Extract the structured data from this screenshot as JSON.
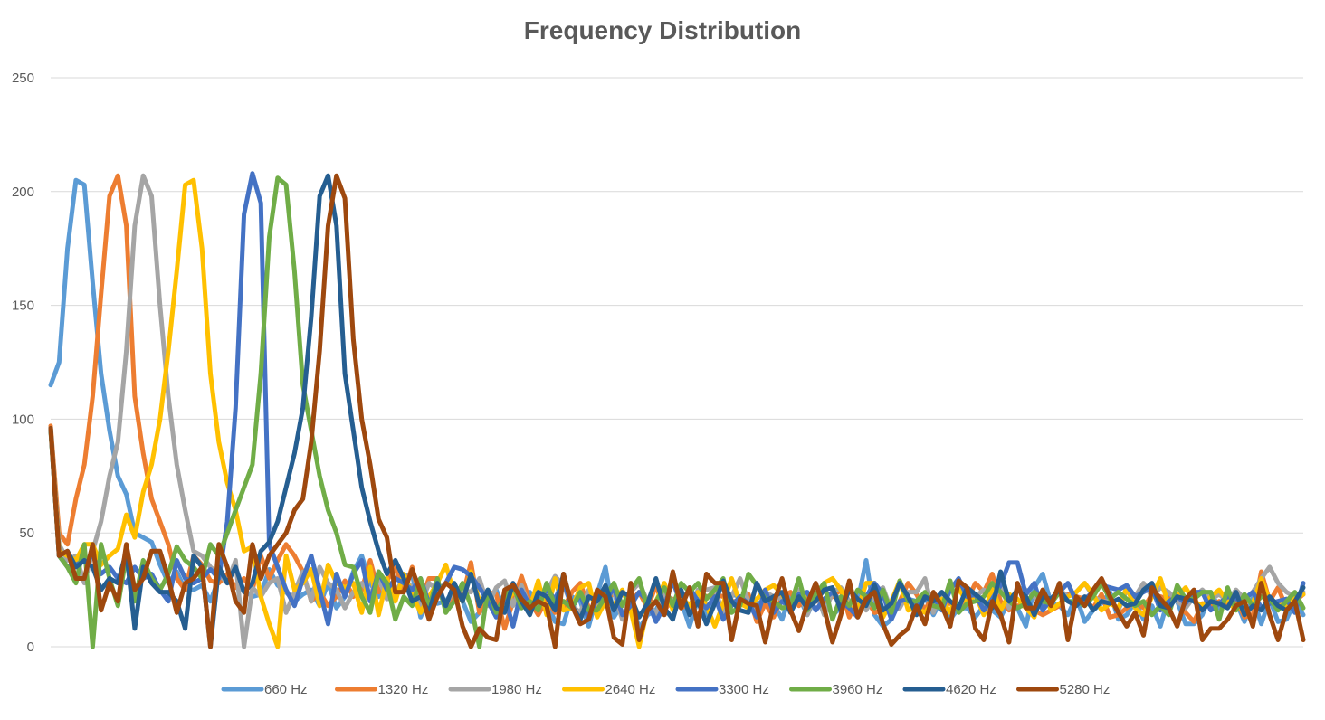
{
  "chart_data": {
    "type": "line",
    "title": "Frequency Distribution",
    "xlabel": "",
    "ylabel": "",
    "ylim": [
      0,
      250
    ],
    "yticks": [
      0,
      50,
      100,
      150,
      200,
      250
    ],
    "x_tick_labels_shown": false,
    "grid": "horizontal",
    "legend_position": "bottom",
    "n_points": 150,
    "series": [
      {
        "name": "660 Hz",
        "color": "#5B9BD5",
        "values": [
          115,
          125,
          175,
          205,
          203,
          160,
          120,
          95,
          75,
          67,
          50,
          48,
          46,
          36,
          28,
          33,
          25,
          25,
          27,
          20,
          30,
          29,
          26,
          25,
          22,
          23,
          34,
          27,
          24,
          20,
          23,
          25,
          18,
          28,
          17,
          22,
          33,
          40,
          28,
          22,
          29,
          23,
          31,
          32,
          13,
          22,
          19,
          20,
          25,
          20,
          11,
          15,
          20,
          25,
          16,
          20,
          17,
          24,
          16,
          20,
          11,
          10,
          22,
          20,
          9,
          23,
          35,
          13,
          19,
          22,
          8,
          14,
          16,
          24,
          20,
          20,
          9,
          21,
          14,
          24,
          12,
          23,
          22,
          20,
          19,
          20,
          19,
          12,
          23,
          22,
          14,
          22,
          20,
          14,
          17,
          20,
          20,
          38,
          14,
          9,
          12,
          20,
          21,
          20,
          22,
          14,
          21,
          12,
          17,
          17,
          13,
          18,
          16,
          13,
          20,
          17,
          9,
          26,
          32,
          19,
          18,
          14,
          22,
          11,
          16,
          19,
          24,
          12,
          14,
          20,
          12,
          18,
          9,
          22,
          20,
          10,
          10,
          14,
          24,
          17,
          25,
          20,
          11,
          22,
          10,
          21,
          11,
          12,
          20,
          14
        ]
      },
      {
        "name": "1320 Hz",
        "color": "#ED7D31",
        "values": [
          97,
          50,
          45,
          65,
          80,
          110,
          155,
          198,
          207,
          185,
          110,
          85,
          65,
          55,
          45,
          30,
          25,
          40,
          36,
          29,
          28,
          32,
          26,
          30,
          25,
          40,
          30,
          38,
          45,
          40,
          33,
          20,
          24,
          18,
          22,
          29,
          22,
          25,
          38,
          24,
          29,
          35,
          24,
          35,
          20,
          30,
          30,
          16,
          23,
          22,
          37,
          15,
          24,
          23,
          8,
          20,
          31,
          20,
          14,
          21,
          15,
          17,
          24,
          28,
          17,
          18,
          22,
          23,
          19,
          20,
          24,
          17,
          27,
          16,
          21,
          17,
          19,
          13,
          22,
          23,
          22,
          20,
          20,
          23,
          11,
          19,
          13,
          22,
          24,
          18,
          21,
          20,
          20,
          22,
          25,
          13,
          21,
          21,
          15,
          16,
          15,
          20,
          28,
          23,
          16,
          23,
          19,
          19,
          18,
          20,
          28,
          24,
          32,
          20,
          16,
          18,
          18,
          16,
          14,
          16,
          18,
          23,
          22,
          21,
          17,
          23,
          13,
          14,
          17,
          20,
          17,
          23,
          22,
          21,
          23,
          15,
          11,
          19,
          18,
          20,
          18,
          21,
          13,
          14,
          33,
          20,
          26,
          17,
          20,
          23
        ]
      },
      {
        "name": "1980 Hz",
        "color": "#A5A5A5",
        "values": [
          95,
          45,
          38,
          40,
          28,
          42,
          55,
          75,
          90,
          130,
          185,
          207,
          198,
          150,
          110,
          80,
          60,
          42,
          40,
          35,
          32,
          28,
          38,
          0,
          26,
          22,
          28,
          30,
          15,
          24,
          33,
          20,
          35,
          28,
          25,
          17,
          24,
          28,
          23,
          30,
          21,
          24,
          30,
          26,
          18,
          28,
          25,
          18,
          26,
          25,
          24,
          30,
          18,
          26,
          29,
          18,
          27,
          17,
          25,
          24,
          31,
          27,
          18,
          15,
          25,
          17,
          26,
          24,
          12,
          24,
          28,
          20,
          14,
          24,
          20,
          24,
          16,
          25,
          25,
          26,
          14,
          22,
          30,
          20,
          15,
          24,
          22,
          21,
          17,
          25,
          14,
          24,
          14,
          24,
          26,
          20,
          20,
          16,
          23,
          26,
          16,
          17,
          24,
          24,
          30,
          15,
          24,
          20,
          17,
          25,
          22,
          25,
          20,
          27,
          17,
          26,
          25,
          22,
          18,
          21,
          25,
          22,
          24,
          28,
          22,
          20,
          20,
          16,
          25,
          22,
          28,
          22,
          26,
          24,
          20,
          17,
          22,
          25,
          21,
          23,
          20,
          25,
          21,
          24,
          30,
          35,
          28,
          24,
          22,
          24
        ]
      },
      {
        "name": "2640 Hz",
        "color": "#FFC000",
        "values": [
          96,
          42,
          40,
          38,
          45,
          45,
          36,
          40,
          43,
          58,
          48,
          68,
          80,
          100,
          130,
          165,
          203,
          205,
          175,
          120,
          90,
          72,
          60,
          42,
          44,
          22,
          10,
          0,
          40,
          25,
          28,
          34,
          18,
          36,
          28,
          26,
          28,
          15,
          35,
          14,
          30,
          20,
          32,
          23,
          15,
          22,
          28,
          36,
          23,
          20,
          33,
          20,
          19,
          16,
          18,
          24,
          21,
          17,
          29,
          14,
          30,
          16,
          17,
          26,
          28,
          13,
          20,
          18,
          25,
          16,
          0,
          17,
          20,
          28,
          16,
          22,
          18,
          24,
          18,
          9,
          19,
          30,
          19,
          17,
          21,
          25,
          27,
          23,
          16,
          22,
          23,
          21,
          28,
          30,
          25,
          17,
          16,
          28,
          28,
          13,
          20,
          29,
          16,
          17,
          15,
          20,
          21,
          15,
          26,
          19,
          23,
          14,
          26,
          16,
          23,
          21,
          17,
          13,
          25,
          16,
          19,
          22,
          24,
          28,
          23,
          16,
          19,
          17,
          26,
          17,
          14,
          22,
          30,
          18,
          22,
          26,
          20,
          18,
          22,
          25,
          20,
          16,
          21,
          19,
          30,
          20,
          19,
          17,
          22,
          23
        ]
      },
      {
        "name": "3300 Hz",
        "color": "#4472C4",
        "values": [
          96,
          40,
          35,
          36,
          38,
          40,
          32,
          35,
          30,
          28,
          35,
          30,
          32,
          25,
          20,
          38,
          30,
          28,
          30,
          34,
          30,
          55,
          105,
          190,
          208,
          195,
          45,
          35,
          25,
          18,
          30,
          40,
          25,
          10,
          32,
          22,
          32,
          38,
          20,
          33,
          25,
          30,
          28,
          25,
          30,
          19,
          24,
          28,
          35,
          34,
          31,
          26,
          20,
          13,
          22,
          9,
          25,
          18,
          21,
          25,
          21,
          29,
          17,
          23,
          12,
          22,
          20,
          26,
          14,
          18,
          24,
          20,
          11,
          18,
          29,
          18,
          26,
          20,
          17,
          22,
          12,
          18,
          22,
          19,
          13,
          25,
          15,
          20,
          17,
          23,
          24,
          16,
          21,
          24,
          20,
          17,
          13,
          22,
          28,
          23,
          12,
          20,
          21,
          19,
          21,
          22,
          16,
          25,
          30,
          22,
          23,
          16,
          21,
          27,
          37,
          37,
          23,
          28,
          16,
          21,
          24,
          28,
          20,
          21,
          24,
          27,
          26,
          25,
          27,
          22,
          24,
          26,
          16,
          20,
          22,
          19,
          24,
          24,
          16,
          19,
          22,
          21,
          21,
          24,
          17,
          19,
          20,
          21,
          15,
          28
        ]
      },
      {
        "name": "3960 Hz",
        "color": "#70AD47",
        "values": [
          95,
          40,
          35,
          28,
          45,
          0,
          45,
          30,
          18,
          40,
          20,
          38,
          30,
          25,
          32,
          44,
          38,
          35,
          30,
          45,
          40,
          50,
          60,
          70,
          80,
          120,
          180,
          206,
          203,
          165,
          115,
          95,
          75,
          60,
          50,
          36,
          35,
          22,
          15,
          33,
          28,
          12,
          22,
          18,
          30,
          17,
          30,
          15,
          20,
          28,
          18,
          0,
          25,
          15,
          22,
          27,
          17,
          20,
          16,
          28,
          18,
          20,
          17,
          24,
          16,
          16,
          22,
          28,
          18,
          25,
          30,
          17,
          20,
          26,
          18,
          28,
          24,
          28,
          21,
          25,
          30,
          15,
          18,
          32,
          27,
          21,
          20,
          17,
          18,
          30,
          16,
          23,
          28,
          12,
          22,
          18,
          25,
          22,
          17,
          25,
          15,
          29,
          20,
          20,
          24,
          18,
          17,
          29,
          15,
          19,
          20,
          22,
          28,
          24,
          20,
          17,
          19,
          24,
          20,
          19,
          24,
          20,
          20,
          18,
          22,
          28,
          21,
          24,
          21,
          18,
          20,
          14,
          18,
          14,
          27,
          21,
          21,
          24,
          24,
          12,
          26,
          16,
          23,
          18,
          22,
          21,
          16,
          20,
          24,
          17
        ]
      },
      {
        "name": "4620 Hz",
        "color": "#255E91",
        "values": [
          96,
          40,
          42,
          35,
          38,
          35,
          25,
          30,
          28,
          42,
          8,
          35,
          28,
          24,
          24,
          20,
          8,
          40,
          35,
          0,
          35,
          28,
          35,
          24,
          28,
          42,
          46,
          55,
          70,
          85,
          105,
          145,
          198,
          207,
          185,
          120,
          95,
          70,
          55,
          42,
          32,
          38,
          30,
          20,
          22,
          15,
          28,
          18,
          28,
          20,
          32,
          18,
          25,
          17,
          15,
          28,
          20,
          14,
          24,
          22,
          16,
          32,
          18,
          12,
          22,
          20,
          27,
          16,
          24,
          22,
          13,
          19,
          30,
          17,
          12,
          25,
          14,
          20,
          10,
          19,
          29,
          20,
          16,
          15,
          28,
          20,
          22,
          24,
          15,
          22,
          17,
          20,
          25,
          26,
          16,
          25,
          21,
          18,
          27,
          16,
          19,
          28,
          22,
          14,
          22,
          20,
          24,
          20,
          17,
          26,
          23,
          20,
          17,
          33,
          20,
          25,
          22,
          14,
          22,
          21,
          25,
          20,
          18,
          22,
          16,
          20,
          19,
          21,
          18,
          19,
          25,
          28,
          18,
          17,
          22,
          21,
          20,
          16,
          20,
          19,
          17,
          24,
          14,
          18,
          16,
          22,
          18,
          16,
          20,
          26
        ]
      },
      {
        "name": "5280 Hz",
        "color": "#9E480E",
        "values": [
          96,
          40,
          42,
          30,
          30,
          45,
          16,
          28,
          20,
          45,
          25,
          30,
          42,
          42,
          30,
          15,
          28,
          30,
          35,
          0,
          45,
          35,
          20,
          15,
          45,
          30,
          40,
          45,
          50,
          60,
          65,
          90,
          130,
          185,
          207,
          197,
          135,
          100,
          80,
          56,
          48,
          24,
          24,
          34,
          24,
          12,
          22,
          28,
          25,
          9,
          0,
          8,
          4,
          3,
          25,
          27,
          21,
          17,
          20,
          18,
          0,
          32,
          18,
          10,
          12,
          25,
          22,
          4,
          1,
          28,
          3,
          16,
          20,
          14,
          33,
          17,
          26,
          9,
          32,
          28,
          28,
          3,
          21,
          19,
          18,
          2,
          19,
          30,
          16,
          7,
          19,
          28,
          17,
          2,
          14,
          29,
          13,
          21,
          24,
          10,
          1,
          5,
          8,
          18,
          10,
          24,
          18,
          9,
          29,
          26,
          8,
          3,
          20,
          14,
          2,
          28,
          17,
          17,
          25,
          18,
          28,
          3,
          22,
          18,
          25,
          30,
          22,
          15,
          9,
          15,
          5,
          26,
          21,
          17,
          9,
          21,
          25,
          3,
          8,
          8,
          12,
          18,
          20,
          9,
          28,
          14,
          3,
          16,
          20,
          3
        ]
      }
    ]
  }
}
